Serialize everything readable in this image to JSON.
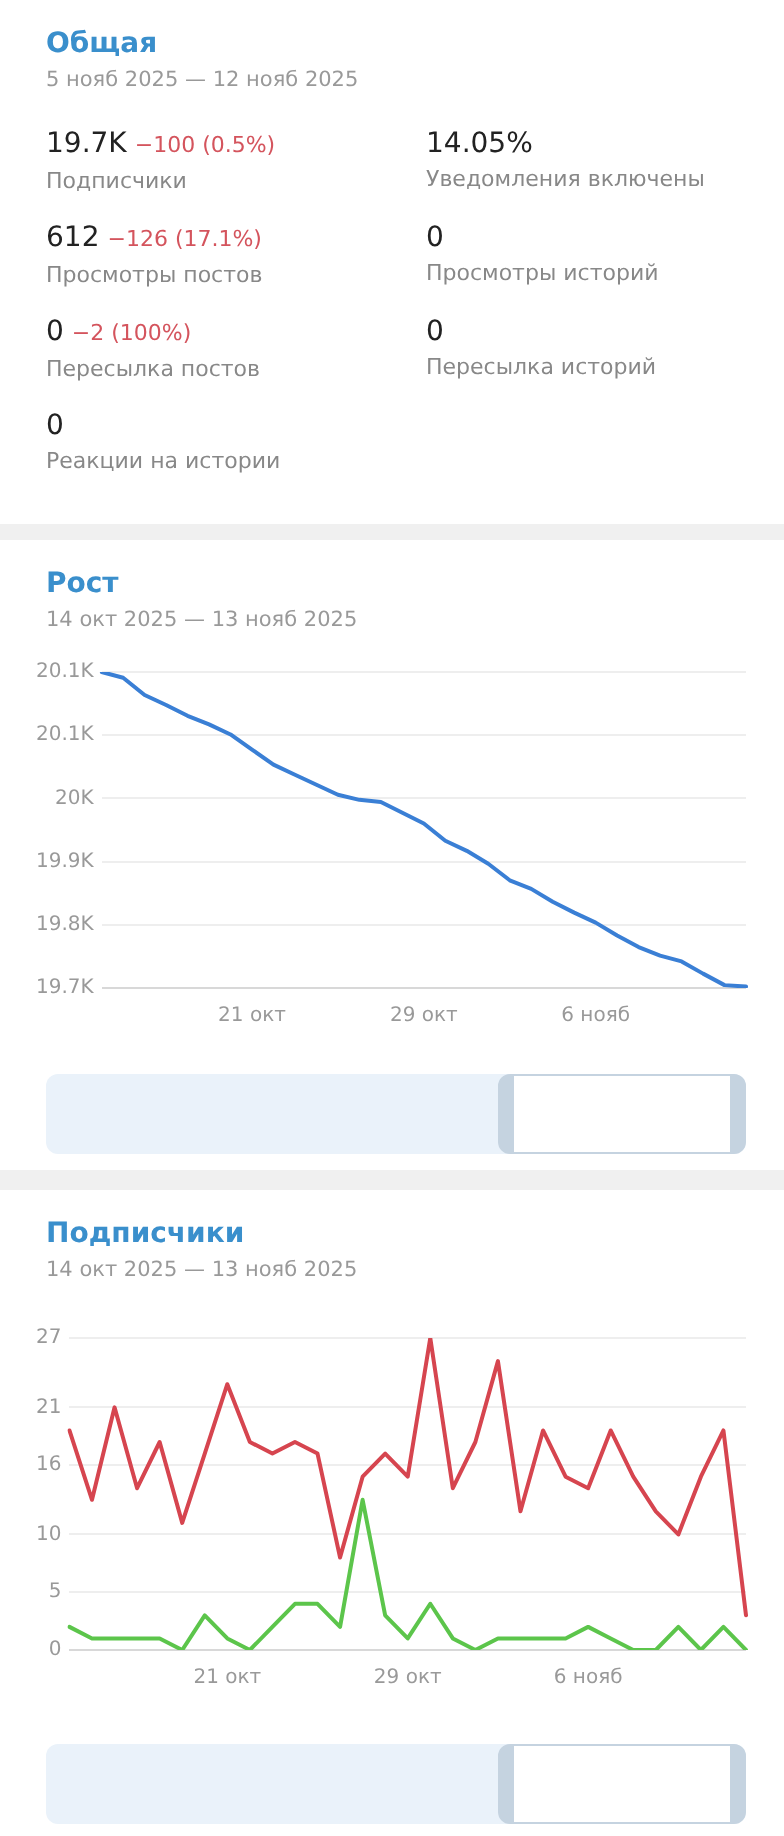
{
  "chart_data": [
    {
      "type": "other",
      "title": "Общая",
      "subtitle": "5 нояб 2025 — 12 нояб 2025",
      "categories": [
        "Подписчики",
        "Уведомления включены",
        "Просмотры постов",
        "Просмотры историй",
        "Пересылка постов",
        "Пересылка историй",
        "Реакции на истории"
      ],
      "series": [
        {
          "values": [
            19700,
            14.05,
            612,
            0,
            0,
            0,
            0
          ],
          "value_labels": [
            "19.7K",
            "14.05%",
            "612",
            "0",
            "0",
            "0",
            "0"
          ]
        },
        {
          "color": "#d4545d",
          "values": [
            -100,
            null,
            -126,
            null,
            -2,
            null,
            null
          ],
          "value_labels": [
            "−100 (0.5%)",
            null,
            "−126 (17.1%)",
            null,
            "−2 (100%)",
            null,
            null
          ]
        }
      ]
    },
    {
      "type": "line",
      "title": "Рост",
      "subtitle": "14 окт 2025 — 13 нояб 2025",
      "categories": [
        null,
        null,
        null,
        null,
        null,
        null,
        null,
        "21 окт",
        null,
        null,
        null,
        null,
        null,
        null,
        null,
        "29 окт",
        null,
        null,
        null,
        null,
        null,
        null,
        null,
        "6 нояб",
        null,
        null,
        null,
        null,
        null,
        null,
        null
      ],
      "series": [
        {
          "color": "#3a7fd5",
          "values": [
            20140,
            20132,
            20108,
            20094,
            20079,
            20067,
            20053,
            20032,
            20011,
            19997,
            19983,
            19969,
            19962,
            19959,
            19944,
            19929,
            19905,
            19891,
            19873,
            19850,
            19838,
            19820,
            19805,
            19791,
            19773,
            19757,
            19745,
            19737,
            19720,
            19704,
            19702
          ]
        }
      ],
      "ylim": [
        19700,
        20140
      ],
      "yticks": [
        {
          "value": 19700,
          "label": "19.7K"
        },
        {
          "value": 19788,
          "label": "19.8K"
        },
        {
          "value": 19876,
          "label": "19.9K"
        },
        {
          "value": 19964,
          "label": "20K"
        },
        {
          "value": 20052,
          "label": "20.1K"
        },
        {
          "value": 20140,
          "label": "20.1K"
        }
      ],
      "grid": "y",
      "legend": false,
      "marker": "none"
    },
    {
      "type": "line",
      "title": "Подписчики",
      "subtitle": "14 окт 2025 — 13 нояб 2025",
      "categories": [
        null,
        null,
        null,
        null,
        null,
        null,
        null,
        "21 окт",
        null,
        null,
        null,
        null,
        null,
        null,
        null,
        "29 окт",
        null,
        null,
        null,
        null,
        null,
        null,
        null,
        "6 нояб",
        null,
        null,
        null,
        null,
        null,
        null,
        null
      ],
      "series": [
        {
          "color": "#d6454f",
          "values": [
            19,
            13,
            21,
            14,
            18,
            11,
            17,
            23,
            18,
            17,
            18,
            17,
            8,
            15,
            17,
            15,
            27,
            14,
            18,
            25,
            12,
            19,
            15,
            14,
            19,
            15,
            12,
            10,
            15,
            19,
            3
          ]
        },
        {
          "color": "#5cc54b",
          "values": [
            2,
            1,
            1,
            1,
            1,
            0,
            3,
            1,
            0,
            2,
            4,
            4,
            2,
            13,
            3,
            1,
            4,
            1,
            0,
            1,
            1,
            1,
            1,
            2,
            1,
            0,
            0,
            2,
            0,
            2,
            0
          ]
        }
      ],
      "ylim": [
        0,
        27
      ],
      "yticks": [
        0,
        5,
        10,
        16,
        21,
        27
      ],
      "grid": "y",
      "legend": false,
      "marker": "none"
    }
  ]
}
